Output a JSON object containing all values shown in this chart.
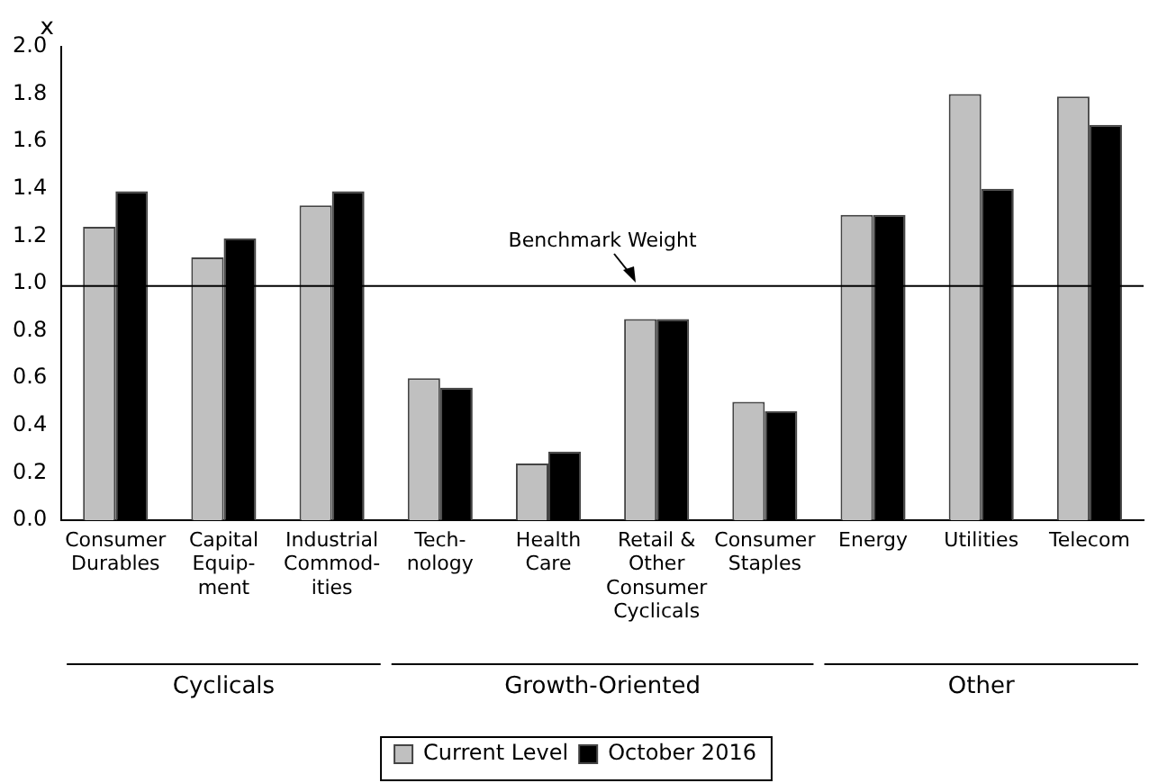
{
  "chart_data": {
    "type": "bar",
    "ylabel": "x",
    "categories": [
      "Consumer\nDurables",
      "Capital\nEquip-\nment",
      "Industrial\nCommod-\nities",
      "Tech-\nnology",
      "Health\nCare",
      "Retail &\nOther\nConsumer\nCyclicals",
      "Consumer\nStaples",
      "Energy",
      "Utilities",
      "Telecom"
    ],
    "series": [
      {
        "name": "Current Level",
        "color": "#c0c0c0",
        "values": [
          1.24,
          1.11,
          1.33,
          0.6,
          0.24,
          0.85,
          0.5,
          1.29,
          1.8,
          1.79
        ]
      },
      {
        "name": "October 2016",
        "color": "#000000",
        "values": [
          1.39,
          1.19,
          1.39,
          0.56,
          0.29,
          0.85,
          0.46,
          1.29,
          1.4,
          1.67
        ]
      }
    ],
    "ylim": [
      0,
      2
    ],
    "yticks": [
      {
        "value": 0,
        "label": "0.0"
      },
      {
        "value": 0.2,
        "label": "0.2"
      },
      {
        "value": 0.4,
        "label": "0.4"
      },
      {
        "value": 0.6,
        "label": "0.6"
      },
      {
        "value": 0.8,
        "label": "0.8"
      },
      {
        "value": 1,
        "label": "1.0"
      },
      {
        "value": 1.2,
        "label": "1.2"
      },
      {
        "value": 1.4,
        "label": "1.4"
      },
      {
        "value": 1.6,
        "label": "1.6"
      },
      {
        "value": 1.8,
        "label": "1.8"
      },
      {
        "value": 2,
        "label": "2.0"
      }
    ],
    "ref_lines": [
      {
        "axis": "y",
        "value": 0.99,
        "label": "Benchmark Weight",
        "color": "#000000"
      }
    ],
    "annotations": [
      "Cyclicals",
      "Growth-Oriented",
      "Other"
    ],
    "grid": false,
    "legend": "bottom"
  }
}
